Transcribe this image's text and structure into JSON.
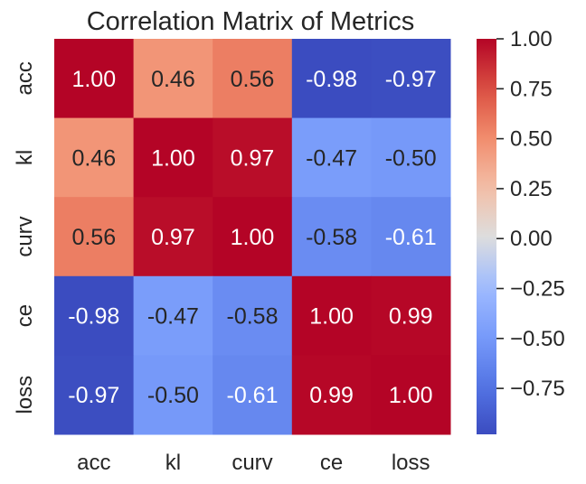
{
  "chart_data": {
    "type": "heatmap",
    "title": "Correlation Matrix of Metrics",
    "xlabel": "",
    "ylabel": "",
    "x_categories": [
      "acc",
      "kl",
      "curv",
      "ce",
      "loss"
    ],
    "y_categories": [
      "acc",
      "kl",
      "curv",
      "ce",
      "loss"
    ],
    "values": [
      [
        1.0,
        0.46,
        0.56,
        -0.98,
        -0.97
      ],
      [
        0.46,
        1.0,
        0.97,
        -0.47,
        -0.5
      ],
      [
        0.56,
        0.97,
        1.0,
        -0.58,
        -0.61
      ],
      [
        -0.98,
        -0.47,
        -0.58,
        1.0,
        0.99
      ],
      [
        -0.97,
        -0.5,
        -0.61,
        0.99,
        1.0
      ]
    ],
    "annotations_format": "0.00",
    "colormap": "coolwarm",
    "colorbar": {
      "range": [
        -0.98,
        1.0
      ],
      "ticks": [
        1.0,
        0.75,
        0.5,
        0.25,
        0.0,
        -0.25,
        -0.5,
        -0.75
      ],
      "tick_labels": [
        "1.00",
        "0.75",
        "0.50",
        "0.25",
        "0.00",
        "−0.25",
        "−0.50",
        "−0.75"
      ]
    },
    "grid": false,
    "legend": "colorbar-right"
  },
  "colors": {
    "text_dark": "#262626",
    "text_light": "#ffffff",
    "background": "#ffffff"
  }
}
